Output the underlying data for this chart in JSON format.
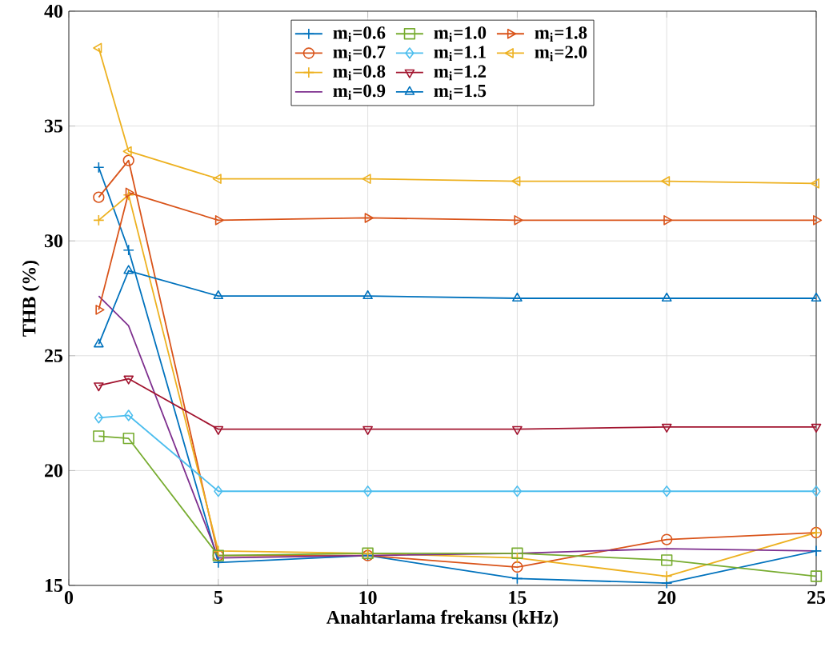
{
  "chart_data": {
    "type": "line",
    "xlabel": "Anahtarlama frekansı (kHz)",
    "ylabel": "THB (%)",
    "x": [
      1,
      2,
      5,
      10,
      15,
      20,
      25
    ],
    "xlim": [
      0,
      25
    ],
    "xticks": [
      0,
      5,
      10,
      15,
      20,
      25
    ],
    "ylim": [
      15,
      40
    ],
    "yticks": [
      15,
      20,
      25,
      30,
      35,
      40
    ],
    "grid": true,
    "legend": "top",
    "line_style": "solid",
    "series": [
      {
        "name": "m$_{i}$=0.6",
        "color": "#0072bd",
        "marker": "cross",
        "values": [
          33.2,
          29.6,
          16.0,
          16.3,
          15.3,
          15.1,
          16.5
        ]
      },
      {
        "name": "m$_{i}$=0.7",
        "color": "#d95319",
        "marker": "circle",
        "values": [
          31.9,
          33.5,
          16.3,
          16.3,
          15.8,
          17.0,
          17.3
        ]
      },
      {
        "name": "m$_{i}$=0.8",
        "color": "#edb120",
        "marker": "cross",
        "values": [
          30.9,
          32.0,
          16.5,
          16.4,
          16.2,
          15.4,
          17.3
        ]
      },
      {
        "name": "m$_{i}$=0.9",
        "color": "#7e2f8e",
        "marker": "none",
        "values": [
          27.6,
          26.3,
          16.2,
          16.3,
          16.4,
          16.6,
          16.5
        ]
      },
      {
        "name": "m$_{i}$=1.0",
        "color": "#77ac30",
        "marker": "square",
        "values": [
          21.5,
          21.4,
          16.3,
          16.4,
          16.4,
          16.1,
          15.4
        ]
      },
      {
        "name": "m$_{i}$=1.1",
        "color": "#4dbeee",
        "marker": "diamond",
        "values": [
          22.3,
          22.4,
          19.1,
          19.1,
          19.1,
          19.1,
          19.1
        ]
      },
      {
        "name": "m$_{i}$=1.2",
        "color": "#a2142f",
        "marker": "triangle-down",
        "values": [
          23.7,
          24.0,
          21.8,
          21.8,
          21.8,
          21.9,
          21.9
        ]
      },
      {
        "name": "m$_{i}$=1.5",
        "color": "#0072bd",
        "marker": "triangle",
        "values": [
          25.5,
          28.7,
          27.6,
          27.6,
          27.5,
          27.5,
          27.5
        ]
      },
      {
        "name": "m$_{i}$=1.8",
        "color": "#d95319",
        "marker": "triangle-right",
        "values": [
          27.0,
          32.1,
          30.9,
          31.0,
          30.9,
          30.9,
          30.9
        ]
      },
      {
        "name": "m$_{i}$=2.0",
        "color": "#edb120",
        "marker": "triangle-left",
        "values": [
          38.4,
          33.9,
          32.7,
          32.7,
          32.6,
          32.6,
          32.5
        ]
      }
    ]
  }
}
